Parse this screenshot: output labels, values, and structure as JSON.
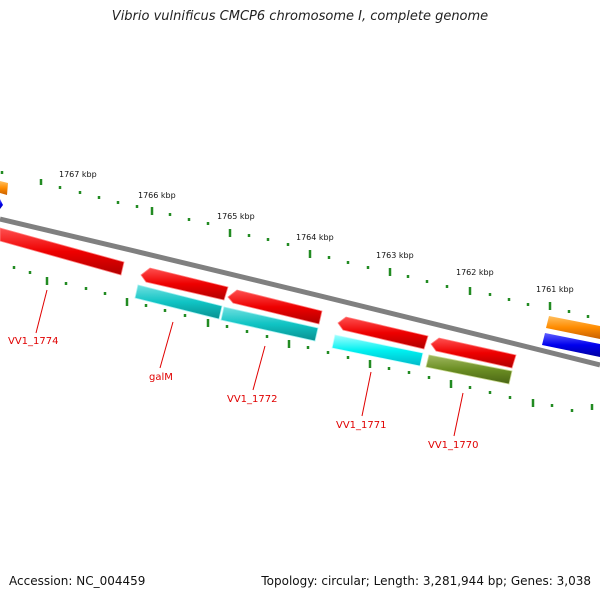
{
  "title": "Vibrio vulnificus CMCP6 chromosome I, complete genome",
  "footer": {
    "accession": "Accession: NC_004459",
    "summary": "Topology: circular; Length: 3,281,944 bp; Genes: 3,038"
  },
  "scale_labels": [
    "1767 kbp",
    "1766 kbp",
    "1765 kbp",
    "1764 kbp",
    "1763 kbp",
    "1762 kbp",
    "1761 kbp"
  ],
  "gene_labels": [
    "VV1_1774",
    "galM",
    "VV1_1772",
    "VV1_1771",
    "VV1_1770"
  ],
  "colors": {
    "forward_cds": "#ff0000",
    "reverse_cds": "#ff0000",
    "rna": "#00c8c8",
    "rna_light": "#00f0f0",
    "other": "#6b8e23",
    "orange_feature": "#ff8c00",
    "blue_feature": "#0000ff",
    "backbone": "#808080",
    "ticks": "#228b22",
    "label": "#e00000"
  }
}
